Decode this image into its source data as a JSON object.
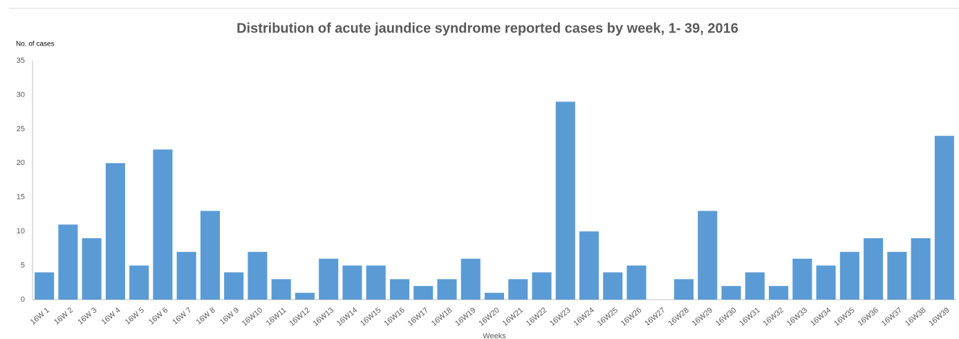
{
  "chart_data": {
    "type": "bar",
    "title": "Distribution of acute jaundice syndrome reported cases by week, 1- 39, 2016",
    "y_label": "No. of cases",
    "x_label": "Weeks",
    "categories": [
      "16W 1",
      "16W 2",
      "16W 3",
      "16W 4",
      "16W 5",
      "16W 6",
      "16W 7",
      "16W 8",
      "16W 9",
      "16W10",
      "16W11",
      "16W12",
      "16W13",
      "16W14",
      "16W15",
      "16W16",
      "16W17",
      "16W18",
      "16W19",
      "16W20",
      "16W21",
      "16W22",
      "16W23",
      "16W24",
      "16W25",
      "16W26",
      "16W27",
      "16W28",
      "16W29",
      "16W30",
      "16W31",
      "16W32",
      "16W33",
      "16W34",
      "16W35",
      "16W36",
      "16W37",
      "16W38",
      "16W39"
    ],
    "values": [
      4,
      11,
      9,
      20,
      5,
      22,
      7,
      13,
      4,
      7,
      3,
      1,
      6,
      5,
      5,
      3,
      2,
      3,
      6,
      1,
      3,
      4,
      29,
      10,
      4,
      5,
      0,
      3,
      13,
      2,
      4,
      2,
      6,
      5,
      7,
      9,
      7,
      9,
      24
    ],
    "color": "#5b9bd5",
    "ylim": [
      0,
      35
    ],
    "yticks": [
      0,
      5,
      10,
      15,
      20,
      25,
      30,
      35
    ],
    "grid": false
  }
}
